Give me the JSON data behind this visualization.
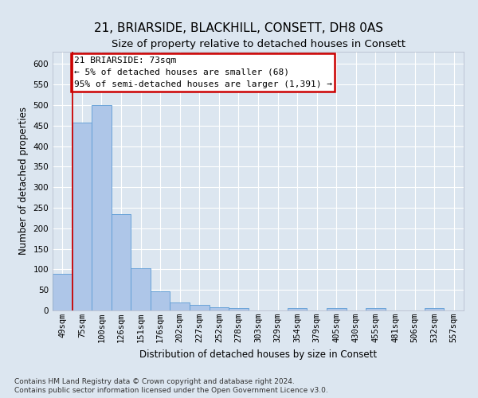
{
  "title": "21, BRIARSIDE, BLACKHILL, CONSETT, DH8 0AS",
  "subtitle": "Size of property relative to detached houses in Consett",
  "xlabel": "Distribution of detached houses by size in Consett",
  "ylabel": "Number of detached properties",
  "bin_labels": [
    "49sqm",
    "75sqm",
    "100sqm",
    "126sqm",
    "151sqm",
    "176sqm",
    "202sqm",
    "227sqm",
    "252sqm",
    "278sqm",
    "303sqm",
    "329sqm",
    "354sqm",
    "379sqm",
    "405sqm",
    "430sqm",
    "455sqm",
    "481sqm",
    "506sqm",
    "532sqm",
    "557sqm"
  ],
  "bar_heights": [
    90,
    458,
    500,
    235,
    103,
    47,
    20,
    13,
    8,
    5,
    0,
    0,
    5,
    0,
    5,
    0,
    5,
    0,
    0,
    5,
    0
  ],
  "bar_color": "#aec6e8",
  "bar_edge_color": "#5b9bd5",
  "highlight_bar_index": 1,
  "highlight_color": "#cc0000",
  "ylim": [
    0,
    630
  ],
  "yticks": [
    0,
    50,
    100,
    150,
    200,
    250,
    300,
    350,
    400,
    450,
    500,
    550,
    600
  ],
  "annotation_text": "21 BRIARSIDE: 73sqm\n← 5% of detached houses are smaller (68)\n95% of semi-detached houses are larger (1,391) →",
  "annotation_box_color": "#ffffff",
  "annotation_box_edge": "#cc0000",
  "footer_line1": "Contains HM Land Registry data © Crown copyright and database right 2024.",
  "footer_line2": "Contains public sector information licensed under the Open Government Licence v3.0.",
  "background_color": "#dce6f0",
  "plot_bg_color": "#dce6f0",
  "grid_color": "#ffffff",
  "title_fontsize": 11,
  "subtitle_fontsize": 9.5,
  "axis_label_fontsize": 8.5,
  "tick_fontsize": 7.5,
  "footer_fontsize": 6.5,
  "annot_fontsize": 8
}
